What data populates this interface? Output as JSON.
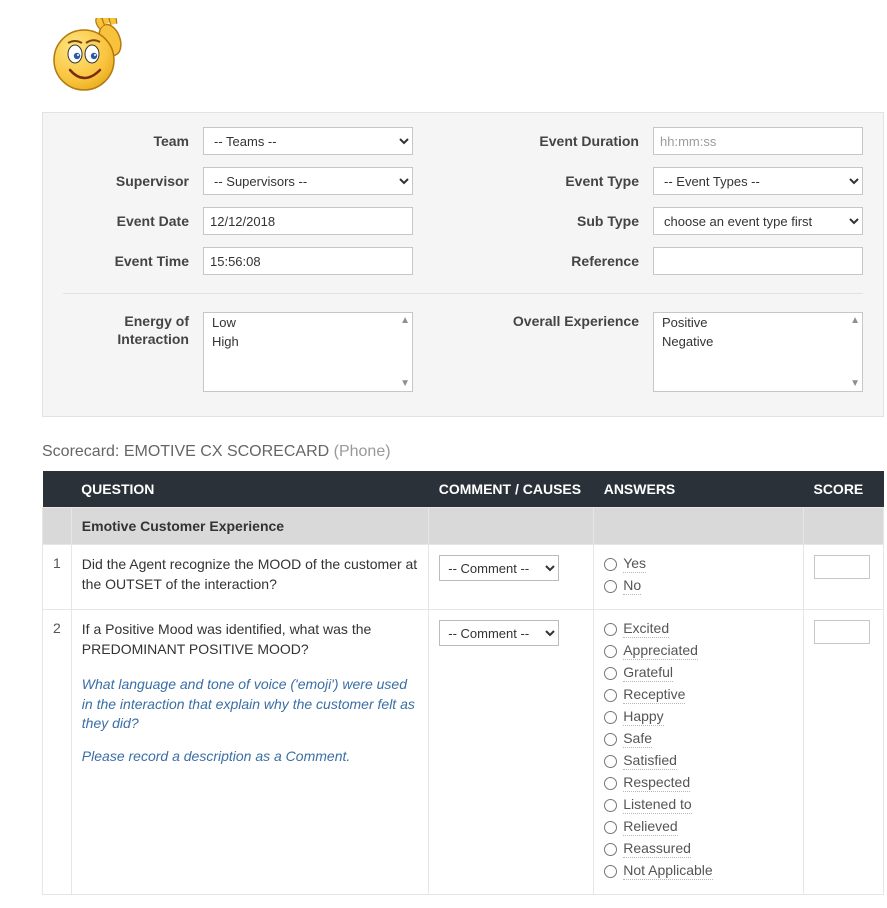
{
  "form": {
    "labels": {
      "team": "Team",
      "supervisor": "Supervisor",
      "event_date": "Event Date",
      "event_time": "Event Time",
      "event_duration": "Event Duration",
      "event_type": "Event Type",
      "sub_type": "Sub Type",
      "reference": "Reference",
      "energy": "Energy of Interaction",
      "overall": "Overall Experience"
    },
    "team_select": "-- Teams --",
    "supervisor_select": "-- Supervisors --",
    "event_date": "12/12/2018",
    "event_time": "15:56:08",
    "event_duration_placeholder": "hh:mm:ss",
    "event_type_select": "-- Event Types --",
    "sub_type_select": "choose an event type first",
    "reference": "",
    "energy_options": [
      "Low",
      "High"
    ],
    "overall_options": [
      "Positive",
      "Negative"
    ]
  },
  "scorecard": {
    "title_prefix": "Scorecard: ",
    "title_name": "EMOTIVE CX SCORECARD",
    "title_suffix": " (Phone)",
    "headers": {
      "question": "QUESTION",
      "comment": "COMMENT / CAUSES",
      "answers": "ANSWERS",
      "score": "SCORE"
    },
    "section": "Emotive Customer Experience",
    "comment_placeholder": "-- Comment --",
    "rows": [
      {
        "num": "1",
        "question": "Did the Agent recognize the MOOD of the customer at the OUTSET of the interaction?",
        "answers": [
          "Yes",
          "No"
        ]
      },
      {
        "num": "2",
        "question": "If a Positive Mood was identified, what was the PREDOMINANT POSITIVE MOOD?",
        "help1": "What language and tone of voice ('emoji') were used in the interaction that explain why the customer felt as they did?",
        "help2": "Please record a description as a Comment.",
        "answers": [
          "Excited",
          "Appreciated",
          "Grateful",
          "Receptive",
          "Happy",
          "Safe",
          "Satisfied",
          "Respected",
          "Listened to",
          "Relieved",
          "Reassured",
          "Not Applicable"
        ]
      }
    ]
  },
  "colors": {
    "panel_bg": "#f5f5f5",
    "panel_border": "#e2e2e2",
    "table_header_bg": "#2b3138",
    "table_header_fg": "#ffffff",
    "section_bg": "#d9d9d9",
    "help_color": "#3a6ea5",
    "dotted_color": "#b7b7b7"
  }
}
